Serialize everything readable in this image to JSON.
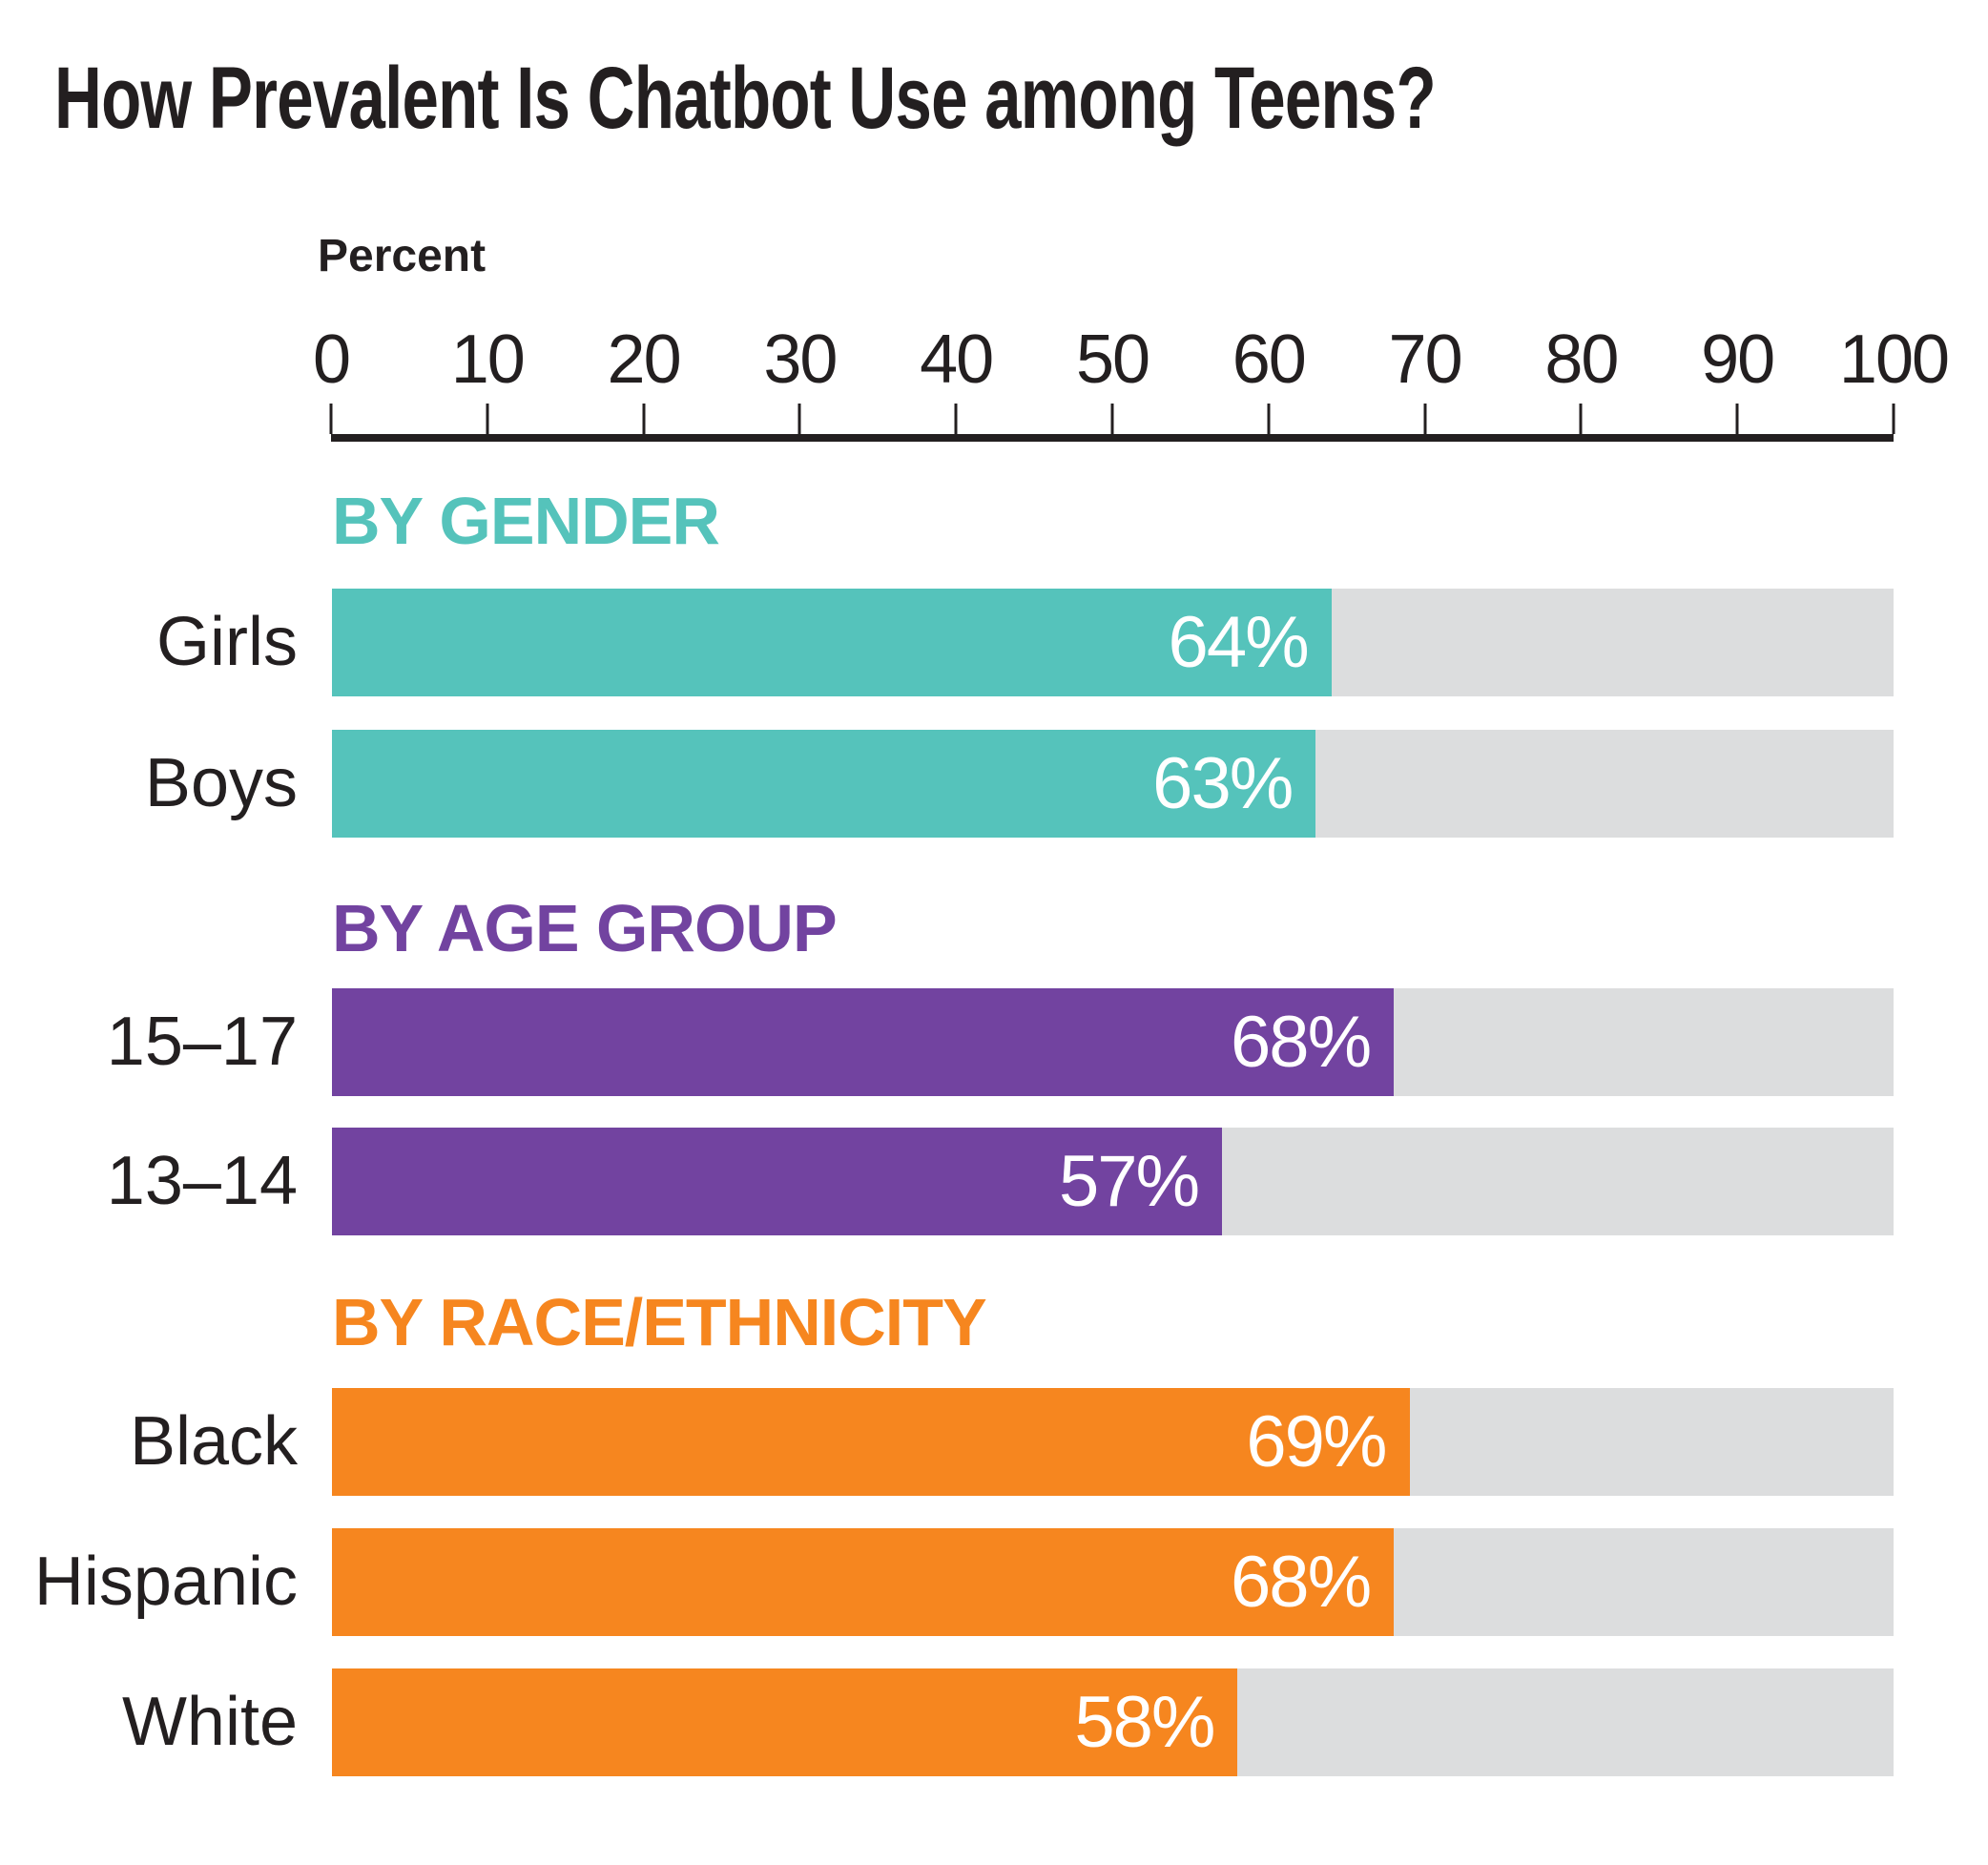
{
  "title": "How Prevalent Is Chatbot Use among Teens?",
  "axis": {
    "label": "Percent",
    "ticks": [
      "0",
      "10",
      "20",
      "30",
      "40",
      "50",
      "60",
      "70",
      "80",
      "90",
      "100"
    ]
  },
  "colors": {
    "teal": "#55c3bb",
    "purple": "#7243a0",
    "orange": "#f6861f",
    "track_gray": "#dcddde",
    "text_dark": "#231f20",
    "value_text": "#ffffff"
  },
  "chart_data": {
    "type": "bar",
    "orientation": "horizontal",
    "title": "How Prevalent Is Chatbot Use among Teens?",
    "xlabel": "Percent",
    "xlim": [
      0,
      100
    ],
    "unit": "%",
    "legend": "none",
    "grid": false,
    "groups": [
      {
        "heading": "BY GENDER",
        "color": "#55c3bb",
        "rows": [
          {
            "label": "Girls",
            "value": 64,
            "value_label": "64%"
          },
          {
            "label": "Boys",
            "value": 63,
            "value_label": "63%"
          }
        ]
      },
      {
        "heading": "BY AGE GROUP",
        "color": "#7243a0",
        "rows": [
          {
            "label": "15–17",
            "value": 68,
            "value_label": "68%"
          },
          {
            "label": "13–14",
            "value": 57,
            "value_label": "57%"
          }
        ]
      },
      {
        "heading": "BY RACE/ETHNICITY",
        "color": "#f6861f",
        "rows": [
          {
            "label": "Black",
            "value": 69,
            "value_label": "69%"
          },
          {
            "label": "Hispanic",
            "value": 68,
            "value_label": "68%"
          },
          {
            "label": "White",
            "value": 58,
            "value_label": "58%"
          }
        ]
      }
    ]
  }
}
